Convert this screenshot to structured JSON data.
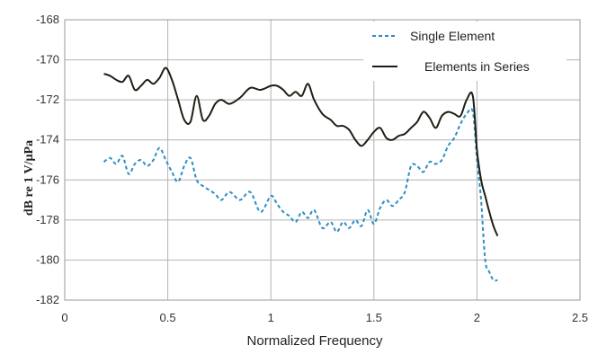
{
  "chart_data": {
    "type": "line",
    "title": "",
    "xlabel": "Normalized Frequency",
    "ylabel": "dB re 1 V/µPa",
    "xlim": [
      0,
      2.5
    ],
    "ylim": [
      -182,
      -168
    ],
    "x_ticks": [
      0,
      0.5,
      1,
      1.5,
      2,
      2.5
    ],
    "y_ticks": [
      -182,
      -180,
      -178,
      -176,
      -174,
      -172,
      -170,
      -168
    ],
    "x_tick_labels": [
      "0",
      "0.5",
      "1",
      "1.5",
      "2",
      "2.5"
    ],
    "y_tick_labels": [
      "-182",
      "-180",
      "-178",
      "-176",
      "-174",
      "-172",
      "-170",
      "-168"
    ],
    "grid": true,
    "legend_position": "top-right",
    "series": [
      {
        "name": "Single Element",
        "color": "#2a8fc4",
        "style": "dashed",
        "x": [
          0.19,
          0.22,
          0.25,
          0.28,
          0.31,
          0.34,
          0.37,
          0.4,
          0.43,
          0.46,
          0.49,
          0.52,
          0.55,
          0.58,
          0.61,
          0.64,
          0.67,
          0.7,
          0.73,
          0.76,
          0.8,
          0.85,
          0.9,
          0.95,
          1.0,
          1.03,
          1.06,
          1.09,
          1.12,
          1.15,
          1.18,
          1.21,
          1.25,
          1.29,
          1.32,
          1.35,
          1.38,
          1.41,
          1.44,
          1.47,
          1.5,
          1.53,
          1.56,
          1.59,
          1.62,
          1.65,
          1.68,
          1.71,
          1.74,
          1.77,
          1.8,
          1.83,
          1.86,
          1.89,
          1.92,
          1.95,
          1.98,
          2.0,
          2.02,
          2.04,
          2.06,
          2.08,
          2.1
        ],
        "y": [
          -175.1,
          -174.9,
          -175.2,
          -174.8,
          -175.7,
          -175.2,
          -175.0,
          -175.3,
          -175.0,
          -174.4,
          -175.0,
          -175.6,
          -176.1,
          -175.3,
          -174.9,
          -176.0,
          -176.3,
          -176.5,
          -176.7,
          -177.0,
          -176.6,
          -177.0,
          -176.6,
          -177.6,
          -176.8,
          -177.2,
          -177.6,
          -177.8,
          -178.1,
          -177.6,
          -177.9,
          -177.5,
          -178.4,
          -178.1,
          -178.6,
          -178.1,
          -178.4,
          -178.0,
          -178.3,
          -177.5,
          -178.2,
          -177.4,
          -177.0,
          -177.3,
          -177.0,
          -176.6,
          -175.3,
          -175.3,
          -175.6,
          -175.1,
          -175.2,
          -175.0,
          -174.3,
          -173.9,
          -173.2,
          -172.7,
          -172.6,
          -175.0,
          -177.0,
          -180.0,
          -180.6,
          -181.0,
          -181.0
        ],
        "_note": "values traced from plot"
      },
      {
        "name": "Elements in Series",
        "color": "#1d1f14",
        "style": "solid",
        "x": [
          0.19,
          0.22,
          0.25,
          0.28,
          0.31,
          0.34,
          0.37,
          0.4,
          0.43,
          0.46,
          0.49,
          0.52,
          0.55,
          0.58,
          0.61,
          0.64,
          0.67,
          0.7,
          0.73,
          0.76,
          0.8,
          0.85,
          0.9,
          0.95,
          1.0,
          1.03,
          1.06,
          1.09,
          1.12,
          1.15,
          1.18,
          1.21,
          1.25,
          1.29,
          1.32,
          1.35,
          1.38,
          1.41,
          1.44,
          1.47,
          1.5,
          1.53,
          1.56,
          1.59,
          1.62,
          1.65,
          1.68,
          1.71,
          1.74,
          1.77,
          1.8,
          1.83,
          1.86,
          1.89,
          1.92,
          1.95,
          1.98,
          2.0,
          2.02,
          2.04,
          2.06,
          2.08,
          2.1
        ],
        "y": [
          -170.7,
          -170.8,
          -171.0,
          -171.1,
          -170.8,
          -171.5,
          -171.3,
          -171.0,
          -171.2,
          -170.9,
          -170.4,
          -171.0,
          -172.0,
          -173.0,
          -173.1,
          -171.8,
          -173.0,
          -172.8,
          -172.2,
          -172.0,
          -172.2,
          -171.9,
          -171.4,
          -171.5,
          -171.3,
          -171.3,
          -171.5,
          -171.8,
          -171.6,
          -171.8,
          -171.2,
          -172.0,
          -172.7,
          -173.0,
          -173.3,
          -173.3,
          -173.5,
          -174.0,
          -174.3,
          -174.0,
          -173.6,
          -173.4,
          -173.9,
          -174.0,
          -173.8,
          -173.7,
          -173.4,
          -173.1,
          -172.6,
          -172.9,
          -173.4,
          -172.8,
          -172.6,
          -172.7,
          -172.8,
          -172.0,
          -171.8,
          -174.5,
          -176.0,
          -176.8,
          -177.6,
          -178.3,
          -178.8
        ],
        "_note": "values traced from plot"
      }
    ]
  }
}
